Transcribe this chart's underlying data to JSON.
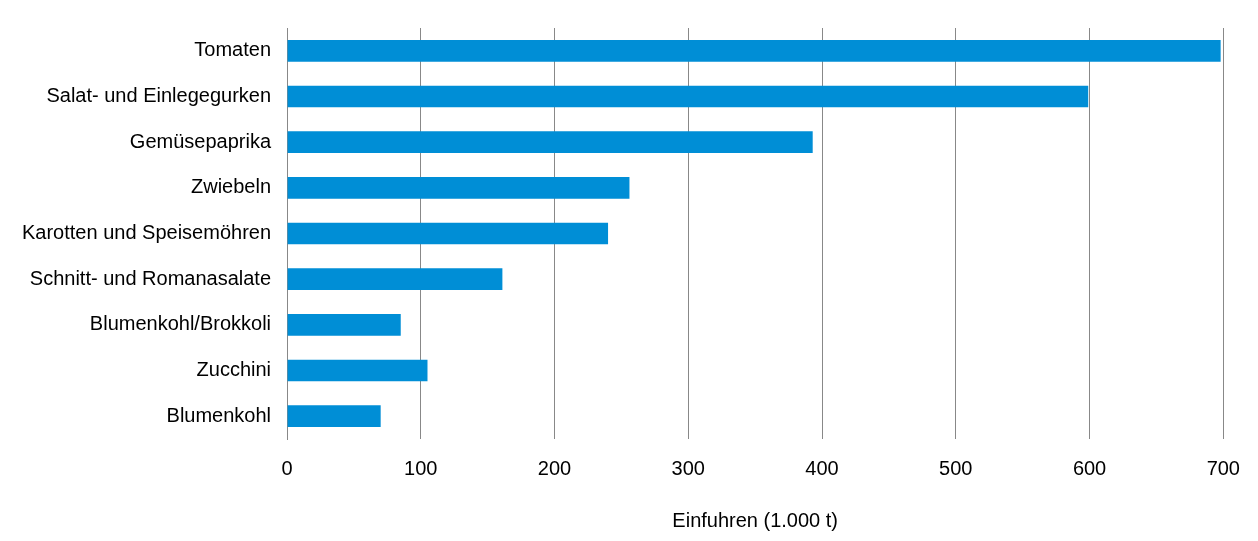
{
  "chart_data": {
    "type": "bar",
    "orientation": "horizontal",
    "xlabel": "Einfuhren (1.000 t)",
    "categories": [
      "Tomaten",
      "Salat- und Einlegegurken",
      "Gemüsepaprika",
      "Zwiebeln",
      "Karotten und Speisemöhren",
      "Schnitt- und Romanasalate",
      "Blumenkohl/Brokkoli",
      "Zucchini",
      "Blumenkohl"
    ],
    "values": [
      698,
      599,
      393,
      256,
      240,
      161,
      85,
      105,
      70
    ],
    "color": "#008ed6",
    "xlim": [
      0,
      700
    ],
    "xticks": [
      0,
      100,
      200,
      300,
      400,
      500,
      600,
      700
    ],
    "grid": "x",
    "legend": false
  }
}
